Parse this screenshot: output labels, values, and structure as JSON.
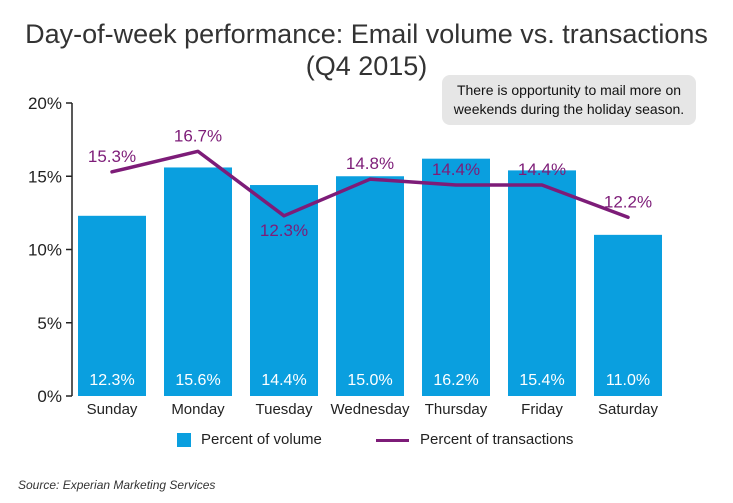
{
  "chart_data": {
    "type": "bar",
    "title": "Day-of-week performance: Email volume vs. transactions",
    "subtitle": "(Q4 2015)",
    "categories": [
      "Sunday",
      "Monday",
      "Tuesday",
      "Wednesday",
      "Thursday",
      "Friday",
      "Saturday"
    ],
    "series": [
      {
        "name": "Percent of volume",
        "type": "bar",
        "values": [
          12.3,
          15.6,
          14.4,
          15.0,
          16.2,
          15.4,
          11.0
        ],
        "labels": [
          "12.3%",
          "15.6%",
          "14.4%",
          "15.0%",
          "16.2%",
          "15.4%",
          "11.0%"
        ]
      },
      {
        "name": "Percent of transactions",
        "type": "line",
        "values": [
          15.3,
          16.7,
          12.3,
          14.8,
          14.4,
          14.4,
          12.2
        ],
        "labels": [
          "15.3%",
          "16.7%",
          "12.3%",
          "14.8%",
          "14.4%",
          "14.4%",
          "12.2%"
        ]
      }
    ],
    "y_ticks": [
      "0%",
      "5%",
      "10%",
      "15%",
      "20%"
    ],
    "ylim": [
      0,
      20
    ],
    "xlabel": "",
    "ylabel": "",
    "grid": false,
    "legend": "bottom",
    "colors": {
      "bar": "#0a9fdf",
      "line": "#7d1c78"
    }
  },
  "callout": "There is opportunity to mail more on weekends during the holiday season.",
  "source": "Source: Experian Marketing Services"
}
